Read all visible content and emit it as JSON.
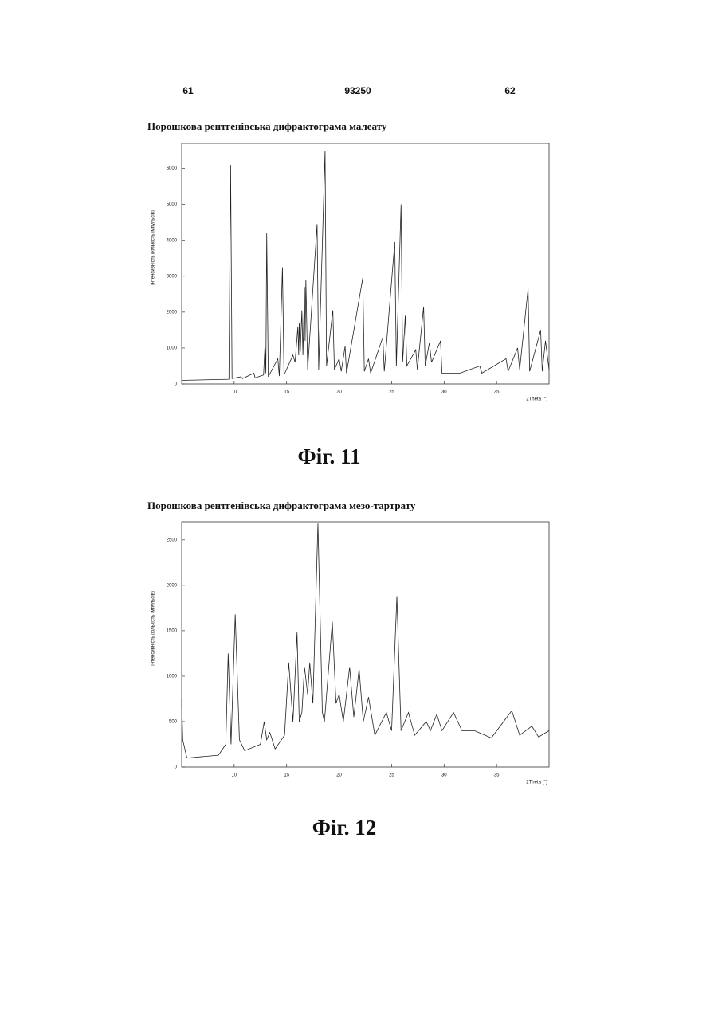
{
  "header": {
    "left": "61",
    "center": "93250",
    "right": "62"
  },
  "chart_data": [
    {
      "type": "line",
      "title": "Порошкова рентгенівська дифрактограма малеату",
      "caption": "Фіг. 11",
      "y_label": "Інтенсивність (кількість імпульсів)",
      "x_label": "2Theta (°)",
      "color": "#222222",
      "xlim": [
        5,
        40
      ],
      "xticks": [
        10,
        15,
        20,
        25,
        30,
        35
      ],
      "ylim": [
        0,
        6700
      ],
      "yticks": [
        0,
        1000,
        2000,
        3000,
        4000,
        5000,
        6000
      ],
      "x": [
        5,
        9.5,
        9.66,
        9.8,
        10.65,
        10.8,
        11.87,
        12.0,
        12.8,
        12.94,
        13.02,
        13.1,
        13.25,
        14.16,
        14.3,
        14.6,
        14.75,
        15.6,
        15.8,
        16.07,
        16.15,
        16.2,
        16.3,
        16.45,
        16.55,
        16.7,
        16.76,
        16.83,
        17.0,
        17.9,
        18.05,
        18.66,
        18.8,
        19.4,
        19.55,
        20.0,
        20.2,
        20.57,
        20.7,
        22.25,
        22.4,
        22.8,
        23.0,
        24.16,
        24.3,
        25.3,
        25.45,
        25.9,
        26.05,
        26.3,
        26.45,
        27.3,
        27.45,
        28.05,
        28.2,
        28.6,
        28.8,
        29.66,
        29.8,
        31.5,
        33.4,
        33.6,
        35.9,
        36.1,
        37.0,
        37.2,
        38.0,
        38.15,
        39.2,
        39.35,
        39.66,
        40
      ],
      "values": [
        100,
        130,
        6100,
        150,
        200,
        150,
        300,
        170,
        250,
        1100,
        300,
        4200,
        200,
        700,
        220,
        3250,
        250,
        800,
        600,
        1600,
        800,
        1700,
        900,
        2050,
        800,
        2700,
        1200,
        2900,
        400,
        4450,
        400,
        6500,
        500,
        2050,
        400,
        700,
        350,
        1050,
        300,
        2950,
        350,
        700,
        300,
        1300,
        350,
        3950,
        500,
        5000,
        600,
        1900,
        500,
        950,
        400,
        2150,
        500,
        1150,
        600,
        1200,
        300,
        300,
        500,
        300,
        700,
        350,
        1000,
        400,
        2650,
        350,
        1500,
        350,
        1200,
        400
      ]
    },
    {
      "type": "line",
      "title": "Порошкова рентгенівська дифрактограма мезо-тартрату",
      "caption": "Фіг. 12",
      "y_label": "Інтенсивність (кількість імпульсів)",
      "x_label": "2Theta (°)",
      "color": "#222222",
      "xlim": [
        5,
        40
      ],
      "xticks": [
        10,
        15,
        20,
        25,
        30,
        35
      ],
      "ylim": [
        0,
        2700
      ],
      "yticks": [
        0,
        500,
        1000,
        1500,
        2000,
        2500
      ],
      "x": [
        5,
        5.1,
        5.5,
        8.5,
        9.2,
        9.43,
        9.7,
        10.1,
        10.5,
        11.0,
        12.5,
        12.86,
        13.1,
        13.4,
        13.9,
        14.8,
        15.2,
        15.6,
        15.99,
        16.2,
        16.45,
        16.7,
        17.0,
        17.2,
        17.5,
        17.98,
        18.4,
        18.6,
        19.35,
        19.7,
        20.0,
        20.4,
        21.0,
        21.4,
        21.9,
        22.3,
        22.8,
        23.4,
        24.5,
        25.0,
        25.5,
        25.9,
        26.6,
        27.2,
        28.3,
        28.7,
        29.3,
        29.8,
        30.9,
        31.7,
        32.9,
        34.5,
        36.45,
        37.2,
        38.36,
        39.0,
        40
      ],
      "values": [
        750,
        300,
        100,
        130,
        250,
        1250,
        250,
        1680,
        300,
        180,
        250,
        500,
        300,
        380,
        200,
        350,
        1150,
        500,
        1480,
        500,
        600,
        1100,
        800,
        1150,
        700,
        2680,
        600,
        500,
        1600,
        700,
        800,
        500,
        1100,
        550,
        1080,
        500,
        770,
        350,
        600,
        400,
        1880,
        400,
        600,
        350,
        500,
        400,
        580,
        400,
        600,
        400,
        400,
        320,
        620,
        350,
        450,
        330,
        400
      ]
    }
  ]
}
